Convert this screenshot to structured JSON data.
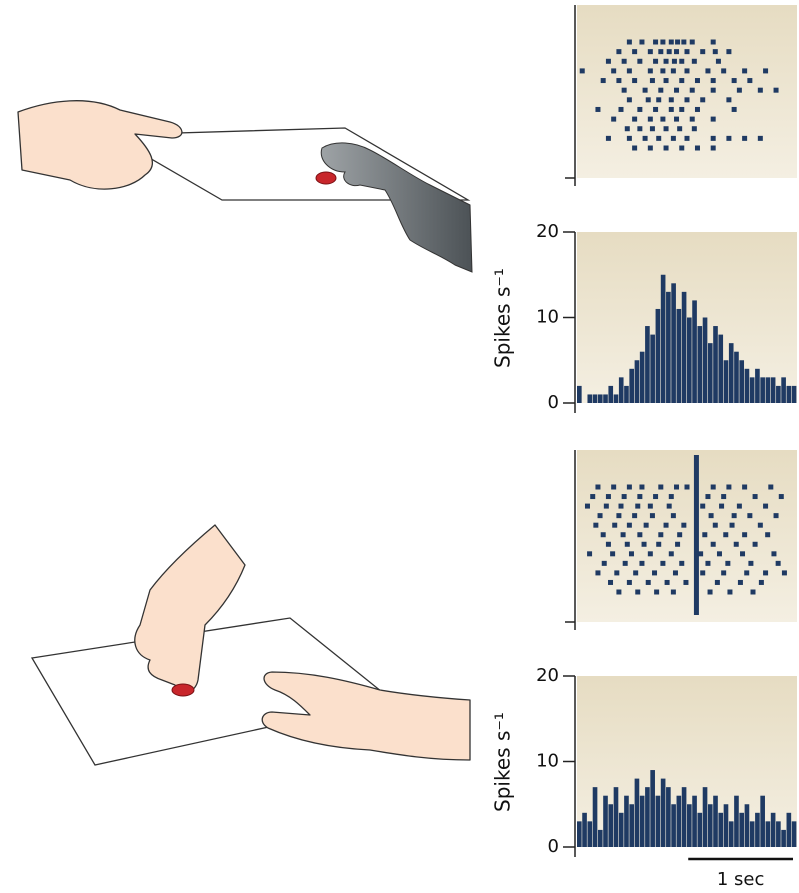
{
  "chart_data": [
    {
      "type": "raster",
      "color": "#1f3a63",
      "xlim": [
        0,
        2.1
      ],
      "trials": [
        [
          0.5,
          0.62,
          0.75,
          0.82,
          0.9,
          0.96,
          1.02,
          1.1,
          1.3
        ],
        [
          0.4,
          0.55,
          0.7,
          0.8,
          0.88,
          0.95,
          1.05,
          1.2,
          1.32,
          1.45
        ],
        [
          0.3,
          0.45,
          0.6,
          0.75,
          0.85,
          0.93,
          1.0,
          1.12,
          1.35
        ],
        [
          0.05,
          0.35,
          0.5,
          0.7,
          0.82,
          0.92,
          1.05,
          1.25,
          1.4,
          1.6,
          1.8
        ],
        [
          0.25,
          0.4,
          0.55,
          0.72,
          0.85,
          1.0,
          1.15,
          1.3,
          1.5,
          1.65
        ],
        [
          0.45,
          0.65,
          0.8,
          0.95,
          1.1,
          1.3,
          1.55,
          1.75,
          1.9
        ],
        [
          0.5,
          0.68,
          0.78,
          0.9,
          1.05,
          1.2,
          1.45
        ],
        [
          0.2,
          0.42,
          0.6,
          0.75,
          0.9,
          1.0,
          1.15,
          1.5
        ],
        [
          0.35,
          0.55,
          0.7,
          0.82,
          0.95,
          1.1,
          1.3
        ],
        [
          0.48,
          0.6,
          0.72,
          0.85,
          0.98,
          1.12
        ],
        [
          0.3,
          0.5,
          0.65,
          0.78,
          0.92,
          1.05,
          1.3,
          1.45,
          1.6,
          1.75
        ],
        [
          0.55,
          0.7,
          0.85,
          1.0,
          1.15,
          1.3
        ]
      ]
    },
    {
      "type": "histogram",
      "color": "#1f3a63",
      "xlim": [
        0,
        2.1
      ],
      "ylim": [
        0,
        20
      ],
      "yticks": [
        0,
        10,
        20
      ],
      "y_label": "Spikes s⁻¹",
      "bins": [
        0,
        0.05,
        0.1,
        0.15,
        0.2,
        0.25,
        0.3,
        0.35,
        0.4,
        0.45,
        0.5,
        0.55,
        0.6,
        0.65,
        0.7,
        0.75,
        0.8,
        0.85,
        0.9,
        0.95,
        1.0,
        1.05,
        1.1,
        1.15,
        1.2,
        1.25,
        1.3,
        1.35,
        1.4,
        1.45,
        1.5,
        1.55,
        1.6,
        1.65,
        1.7,
        1.75,
        1.8,
        1.85,
        1.9,
        1.95,
        2.0,
        2.05,
        2.1
      ],
      "values": [
        2,
        0,
        1,
        1,
        1,
        1,
        2,
        1,
        3,
        2,
        4,
        5,
        6,
        9,
        8,
        11,
        15,
        13,
        14,
        11,
        13,
        10,
        12,
        9,
        10,
        7,
        9,
        8,
        5,
        7,
        6,
        5,
        4,
        3,
        4,
        3,
        3,
        3,
        2,
        3,
        2,
        2
      ]
    },
    {
      "type": "raster",
      "color": "#1f3a63",
      "xlim": [
        0,
        2.1
      ],
      "event_time": 1.14,
      "trials": [
        [
          0.2,
          0.35,
          0.5,
          0.62,
          0.8,
          0.95,
          1.05,
          1.3,
          1.45,
          1.6,
          1.85
        ],
        [
          0.15,
          0.3,
          0.45,
          0.6,
          0.75,
          0.9,
          1.25,
          1.4,
          1.7,
          1.95
        ],
        [
          0.1,
          0.28,
          0.42,
          0.58,
          0.7,
          0.88,
          1.2,
          1.38,
          1.55,
          1.8
        ],
        [
          0.22,
          0.4,
          0.55,
          0.72,
          0.92,
          1.28,
          1.5,
          1.65,
          1.9
        ],
        [
          0.18,
          0.36,
          0.5,
          0.66,
          0.85,
          1.02,
          1.32,
          1.48,
          1.75
        ],
        [
          0.25,
          0.44,
          0.6,
          0.8,
          0.98,
          1.22,
          1.42,
          1.6,
          1.82
        ],
        [
          0.3,
          0.48,
          0.64,
          0.78,
          0.96,
          1.3,
          1.52,
          1.7
        ],
        [
          0.12,
          0.34,
          0.52,
          0.7,
          0.9,
          1.18,
          1.36,
          1.58,
          1.88
        ],
        [
          0.26,
          0.46,
          0.62,
          0.82,
          1.0,
          1.25,
          1.44,
          1.66,
          1.92
        ],
        [
          0.2,
          0.38,
          0.56,
          0.74,
          0.94,
          1.2,
          1.4,
          1.62,
          1.8,
          1.98
        ],
        [
          0.32,
          0.5,
          0.68,
          0.86,
          1.04,
          1.34,
          1.56,
          1.76
        ],
        [
          0.4,
          0.58,
          0.76,
          0.92,
          1.27,
          1.46,
          1.68
        ]
      ]
    },
    {
      "type": "histogram",
      "color": "#1f3a63",
      "xlim": [
        0,
        2.1
      ],
      "ylim": [
        0,
        20
      ],
      "yticks": [
        0,
        10,
        20
      ],
      "y_label": "Spikes s⁻¹",
      "bins": [
        0,
        0.05,
        0.1,
        0.15,
        0.2,
        0.25,
        0.3,
        0.35,
        0.4,
        0.45,
        0.5,
        0.55,
        0.6,
        0.65,
        0.7,
        0.75,
        0.8,
        0.85,
        0.9,
        0.95,
        1.0,
        1.05,
        1.1,
        1.15,
        1.2,
        1.25,
        1.3,
        1.35,
        1.4,
        1.45,
        1.5,
        1.55,
        1.6,
        1.65,
        1.7,
        1.75,
        1.8,
        1.85,
        1.9,
        1.95,
        2.0,
        2.05,
        2.1
      ],
      "values": [
        3,
        4,
        3,
        7,
        2,
        6,
        5,
        7,
        4,
        6,
        5,
        8,
        6,
        7,
        9,
        6,
        8,
        7,
        5,
        6,
        7,
        5,
        6,
        4,
        7,
        5,
        6,
        4,
        5,
        3,
        6,
        4,
        5,
        3,
        4,
        6,
        3,
        4,
        3,
        2,
        4,
        3
      ],
      "scale_bar": {
        "value": 1,
        "label": "1 sec"
      }
    }
  ]
}
